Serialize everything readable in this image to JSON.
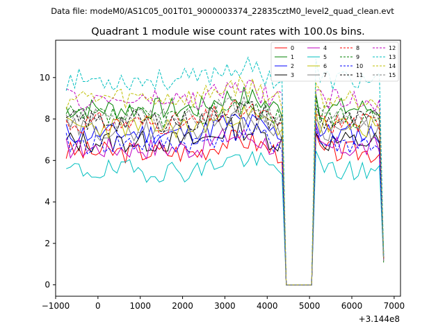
{
  "header": {
    "data_file": "Data file: modeM0/AS1C05_001T01_9000003374_22835cztM0_level2_quad_clean.evt"
  },
  "chart_data": {
    "type": "line",
    "title": "Quadrant 1 module wise count rates with 100.0s bins.",
    "xlabel": "",
    "ylabel": "",
    "offset_label": "+3.144e8",
    "xlim": [
      -1000,
      7150
    ],
    "ylim": [
      -0.55,
      11.8
    ],
    "xticks": [
      -1000,
      0,
      1000,
      2000,
      3000,
      4000,
      5000,
      6000,
      7000
    ],
    "xtick_labels": [
      "−1000",
      "0",
      "1000",
      "2000",
      "3000",
      "4000",
      "5000",
      "6000",
      "7000"
    ],
    "yticks": [
      0,
      2,
      4,
      6,
      8,
      10
    ],
    "ytick_labels": [
      "0",
      "2",
      "4",
      "6",
      "8",
      "10"
    ],
    "grid": false,
    "legend_position": "top-right",
    "x_start": -750,
    "x_step": 100,
    "series": [
      {
        "name": "0",
        "color": "#ff0000",
        "dash": "solid",
        "level": 6.4,
        "seed": 3
      },
      {
        "name": "1",
        "color": "#008000",
        "dash": "solid",
        "level": 8.5,
        "seed": 7
      },
      {
        "name": "2",
        "color": "#0000ff",
        "dash": "solid",
        "level": 7.3,
        "seed": 11
      },
      {
        "name": "3",
        "color": "#000000",
        "dash": "solid",
        "level": 6.9,
        "seed": 13
      },
      {
        "name": "4",
        "color": "#bf00bf",
        "dash": "solid",
        "level": 6.6,
        "seed": 17
      },
      {
        "name": "5",
        "color": "#00bfbf",
        "dash": "solid",
        "level": 5.5,
        "seed": 19
      },
      {
        "name": "6",
        "color": "#bfbf00",
        "dash": "solid",
        "level": 7.6,
        "seed": 23
      },
      {
        "name": "7",
        "color": "#808080",
        "dash": "solid",
        "level": 7.5,
        "seed": 29
      },
      {
        "name": "8",
        "color": "#ff0000",
        "dash": "dashed",
        "level": 7.8,
        "seed": 31
      },
      {
        "name": "9",
        "color": "#008000",
        "dash": "dashed",
        "level": 8.1,
        "seed": 37
      },
      {
        "name": "10",
        "color": "#0000ff",
        "dash": "dashed",
        "level": 6.8,
        "seed": 41
      },
      {
        "name": "11",
        "color": "#000000",
        "dash": "dashed",
        "level": 7.9,
        "seed": 43
      },
      {
        "name": "12",
        "color": "#bf00bf",
        "dash": "dashed",
        "level": 8.9,
        "seed": 47
      },
      {
        "name": "13",
        "color": "#00bfbf",
        "dash": "dashed",
        "level": 9.9,
        "seed": 53
      },
      {
        "name": "14",
        "color": "#bfbf00",
        "dash": "dashed",
        "level": 9.0,
        "seed": 59
      },
      {
        "name": "15",
        "color": "#808080",
        "dash": "dashed",
        "level": 8.0,
        "seed": 61
      }
    ]
  }
}
